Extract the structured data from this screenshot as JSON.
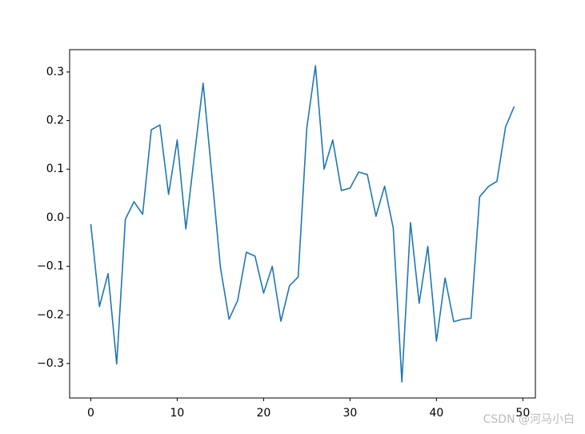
{
  "chart_data": {
    "type": "line",
    "x": [
      0,
      1,
      2,
      3,
      4,
      5,
      6,
      7,
      8,
      9,
      10,
      11,
      12,
      13,
      14,
      15,
      16,
      17,
      18,
      19,
      20,
      21,
      22,
      23,
      24,
      25,
      26,
      27,
      28,
      29,
      30,
      31,
      32,
      33,
      34,
      35,
      36,
      37,
      38,
      39,
      40,
      41,
      42,
      43,
      44,
      45,
      46,
      47,
      48,
      49
    ],
    "series": [
      {
        "color": "#1f77b4",
        "values": [
          -0.013,
          -0.183,
          -0.115,
          -0.301,
          -0.003,
          0.033,
          0.007,
          0.181,
          0.191,
          0.048,
          0.16,
          -0.023,
          0.13,
          0.277,
          0.09,
          -0.102,
          -0.209,
          -0.17,
          -0.071,
          -0.079,
          -0.155,
          -0.1,
          -0.213,
          -0.14,
          -0.122,
          0.185,
          0.313,
          0.1,
          0.16,
          0.056,
          0.061,
          0.094,
          0.089,
          0.003,
          0.065,
          -0.021,
          -0.338,
          -0.01,
          -0.176,
          -0.059,
          -0.254,
          -0.124,
          -0.214,
          -0.209,
          -0.207,
          0.043,
          0.064,
          0.075,
          0.187,
          0.229
        ]
      }
    ],
    "xlim": [
      -2.45,
      51.45
    ],
    "xticks": [
      0,
      10,
      20,
      30,
      40,
      50
    ],
    "ylim": [
      -0.371,
      0.346
    ],
    "yticks": [
      {
        "value": -0.3,
        "label": "−0.3"
      },
      {
        "value": -0.2,
        "label": "−0.2"
      },
      {
        "value": -0.1,
        "label": "−0.1"
      },
      {
        "value": 0,
        "label": "0.0"
      },
      0.1,
      0.2,
      0.3
    ],
    "watermark": "CSDN @河马小白"
  }
}
